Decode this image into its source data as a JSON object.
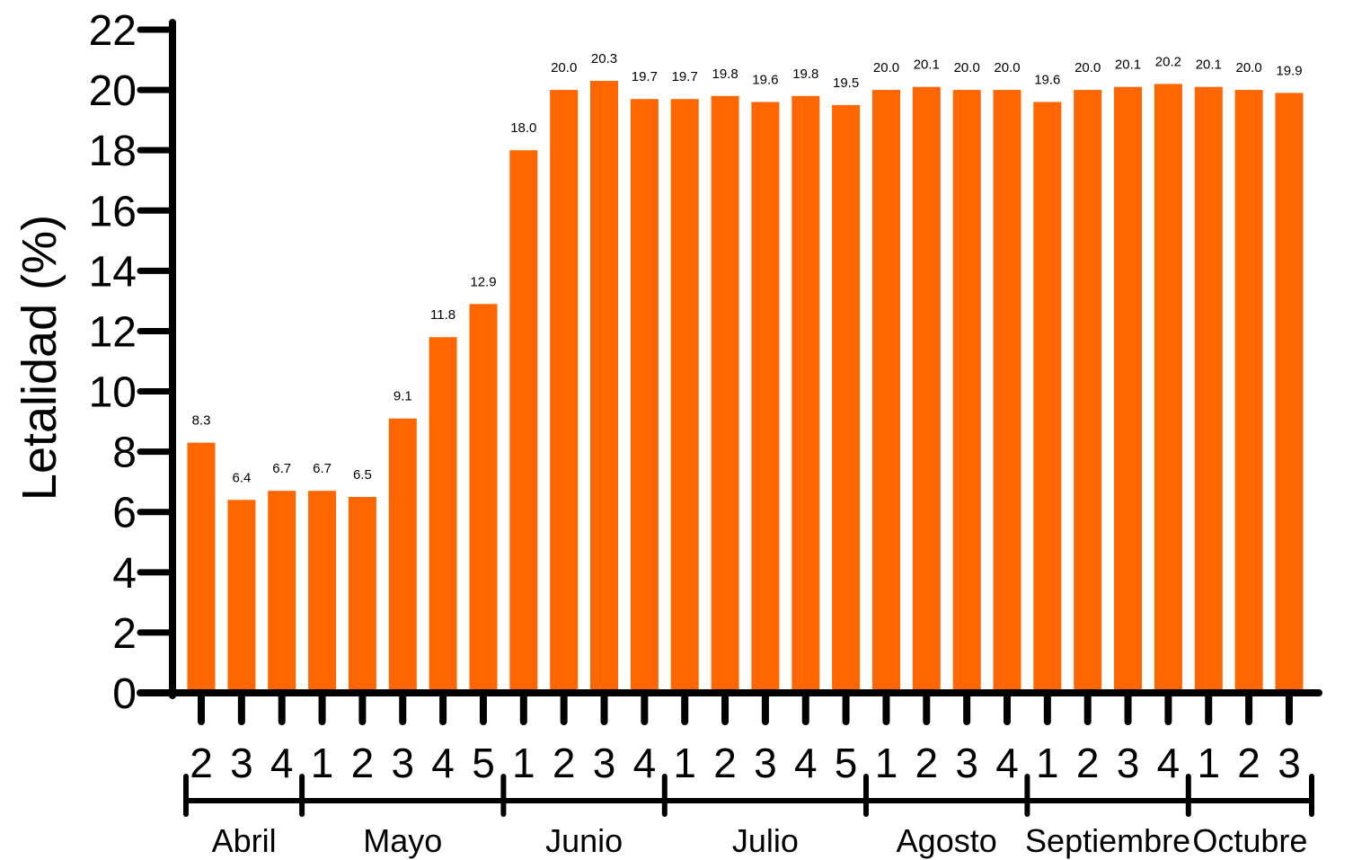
{
  "chart_data": {
    "type": "bar",
    "title": "",
    "xlabel": "",
    "ylabel": "Letalidad (%)",
    "ylim": [
      0,
      22
    ],
    "yticks": [
      0,
      2,
      4,
      6,
      8,
      10,
      12,
      14,
      16,
      18,
      20,
      22
    ],
    "bar_color": "#ff6600",
    "categories": [
      "2",
      "3",
      "4",
      "1",
      "2",
      "3",
      "4",
      "5",
      "1",
      "2",
      "3",
      "4",
      "1",
      "2",
      "3",
      "4",
      "5",
      "1",
      "2",
      "3",
      "4",
      "1",
      "2",
      "3",
      "4",
      "1",
      "2",
      "3"
    ],
    "values": [
      8.3,
      6.4,
      6.7,
      6.7,
      6.5,
      9.1,
      11.8,
      12.9,
      18.0,
      20.0,
      20.3,
      19.7,
      19.7,
      19.8,
      19.6,
      19.8,
      19.5,
      20.0,
      20.1,
      20.0,
      20.0,
      19.6,
      20.0,
      20.1,
      20.2,
      20.1,
      20.0,
      19.9
    ],
    "data_labels": [
      "8.3",
      "6.4",
      "6.7",
      "6.7",
      "6.5",
      "9.1",
      "11.8",
      "12.9",
      "18.0",
      "20.0",
      "20.3",
      "19.7",
      "19.7",
      "19.8",
      "19.6",
      "19.8",
      "19.5",
      "20.0",
      "20.1",
      "20.0",
      "20.0",
      "19.6",
      "20.0",
      "20.1",
      "20.2",
      "20.1",
      "20.0",
      "19.9"
    ],
    "months": [
      {
        "name": "Abril",
        "weeks": 3
      },
      {
        "name": "Mayo",
        "weeks": 5
      },
      {
        "name": "Junio",
        "weeks": 4
      },
      {
        "name": "Julio",
        "weeks": 5
      },
      {
        "name": "Agosto",
        "weeks": 4
      },
      {
        "name": "Septiembre",
        "weeks": 4
      },
      {
        "name": "Octubre",
        "weeks": 3
      }
    ]
  }
}
